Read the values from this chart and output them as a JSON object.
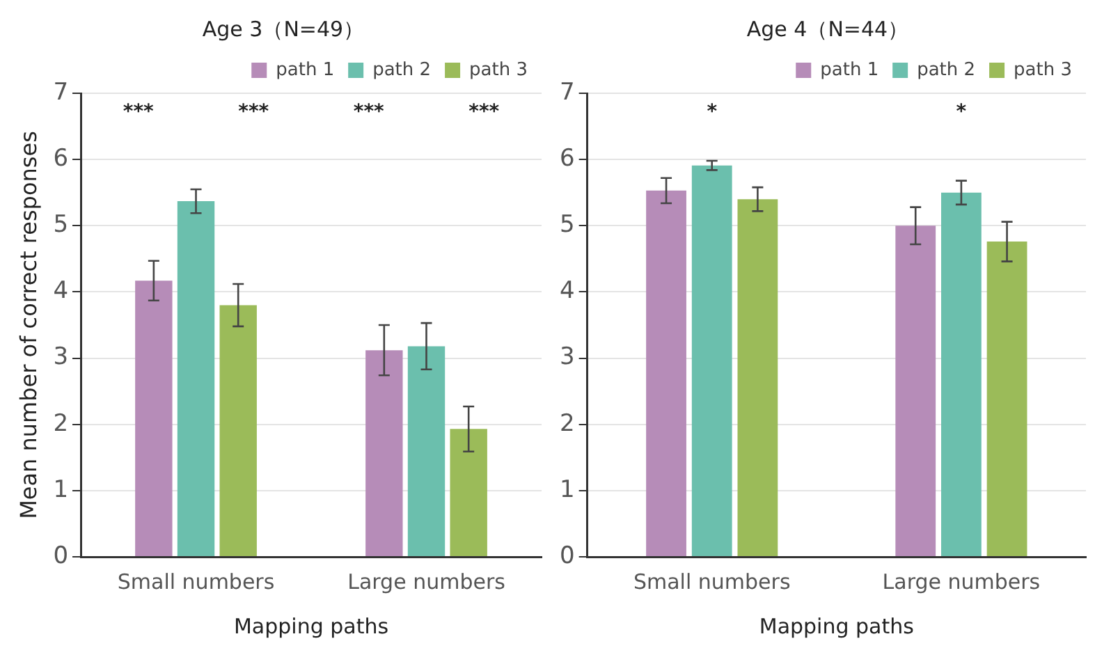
{
  "chart_data": [
    {
      "type": "bar",
      "title": "Age 3（N=49）",
      "xlabel": "Mapping paths",
      "ylabel": "Mean number of correct responses",
      "categories": [
        "Small numbers",
        "Large numbers"
      ],
      "series": [
        {
          "name": "path 1",
          "color": "#b68cb8",
          "values": [
            4.17,
            3.12
          ],
          "errors": [
            0.3,
            0.38
          ]
        },
        {
          "name": "path 2",
          "color": "#6bbfad",
          "values": [
            5.37,
            3.18
          ],
          "errors": [
            0.18,
            0.35
          ]
        },
        {
          "name": "path 3",
          "color": "#9bbb59",
          "values": [
            3.8,
            1.93
          ],
          "errors": [
            0.32,
            0.34
          ]
        }
      ],
      "ylim": [
        0,
        7
      ],
      "yticks": [
        0,
        1,
        2,
        3,
        4,
        5,
        6,
        7
      ],
      "grid": "y",
      "legend": "top right",
      "annotations": [
        "***",
        "***",
        "***",
        "***"
      ]
    },
    {
      "type": "bar",
      "title": "Age 4（N=44）",
      "xlabel": "Mapping paths",
      "categories": [
        "Small numbers",
        "Large numbers"
      ],
      "series": [
        {
          "name": "path 1",
          "color": "#b68cb8",
          "values": [
            5.53,
            5.0
          ],
          "errors": [
            0.19,
            0.28
          ]
        },
        {
          "name": "path 2",
          "color": "#6bbfad",
          "values": [
            5.91,
            5.5
          ],
          "errors": [
            0.07,
            0.18
          ]
        },
        {
          "name": "path 3",
          "color": "#9bbb59",
          "values": [
            5.4,
            4.76
          ],
          "errors": [
            0.18,
            0.3
          ]
        }
      ],
      "ylim": [
        0,
        7
      ],
      "yticks": [
        0,
        1,
        2,
        3,
        4,
        5,
        6,
        7
      ],
      "grid": "y",
      "legend": "top right",
      "annotations": [
        "*",
        "*"
      ]
    }
  ]
}
